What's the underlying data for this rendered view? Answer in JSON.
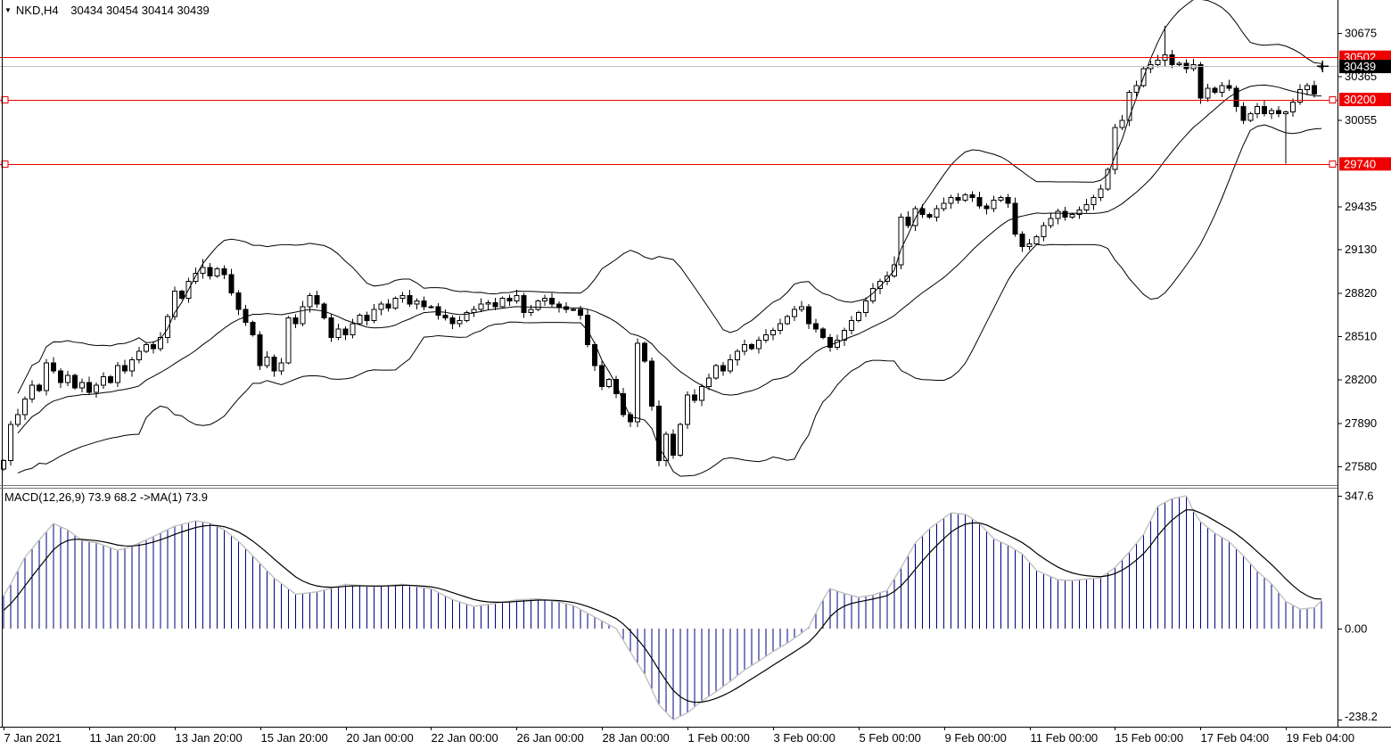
{
  "header": {
    "symbol": "NKD,H4",
    "ohlc_text": "30434 30454 30414 30439"
  },
  "colors": {
    "background": "#ffffff",
    "bull_body": "#ffffff",
    "bear_body": "#000000",
    "candle_outline": "#000000",
    "bollinger": "#000000",
    "macd_bar": "#000080",
    "macd_main": "#c0c0c0",
    "macd_signal": "#000000",
    "hline": "#ee0000",
    "hline_label_bg": "#ee0000",
    "current_line": "#c0c0c0",
    "current_label_bg": "#000000",
    "label_text": "#ffffff",
    "axis_text": "#000000",
    "border": "#000000",
    "separator": "#777777"
  },
  "chart_data": {
    "type": "candlestick",
    "symbol": "NKD",
    "timeframe": "H4",
    "last_candle": {
      "open": 30434,
      "high": 30454,
      "low": 30414,
      "close": 30439
    },
    "current_price": 30439,
    "price_axis": {
      "ticks": [
        30675,
        30365,
        30055,
        29435,
        29130,
        28820,
        28510,
        28200,
        27890,
        27580
      ]
    },
    "h_lines": [
      {
        "price": 30502,
        "label": "30502",
        "selected": false
      },
      {
        "price": 30200,
        "label": "30200",
        "selected": true
      },
      {
        "price": 29740,
        "label": "29740",
        "selected": true
      }
    ],
    "x_labels": [
      {
        "index": 0,
        "label": "7 Jan 2021"
      },
      {
        "index": 12,
        "label": "11 Jan 20:00"
      },
      {
        "index": 24,
        "label": "13 Jan 20:00"
      },
      {
        "index": 36,
        "label": "15 Jan 20:00"
      },
      {
        "index": 48,
        "label": "20 Jan 00:00"
      },
      {
        "index": 60,
        "label": "22 Jan 00:00"
      },
      {
        "index": 72,
        "label": "26 Jan 00:00"
      },
      {
        "index": 84,
        "label": "28 Jan 00:00"
      },
      {
        "index": 96,
        "label": "1 Feb 00:00"
      },
      {
        "index": 108,
        "label": "3 Feb 00:00"
      },
      {
        "index": 120,
        "label": "5 Feb 00:00"
      },
      {
        "index": 132,
        "label": "9 Feb 00:00"
      },
      {
        "index": 144,
        "label": "11 Feb 00:00"
      },
      {
        "index": 156,
        "label": "15 Feb 00:00"
      },
      {
        "index": 168,
        "label": "17 Feb 04:00"
      },
      {
        "index": 180,
        "label": "19 Feb 04:00"
      }
    ],
    "candles": {
      "first_open": 27560,
      "closes": [
        27620,
        27880,
        27950,
        28060,
        28160,
        28120,
        28320,
        28260,
        28180,
        28230,
        28140,
        28180,
        28110,
        28160,
        28220,
        28180,
        28300,
        28260,
        28340,
        28400,
        28450,
        28420,
        28500,
        28650,
        28830,
        28780,
        28900,
        28960,
        29000,
        28940,
        28990,
        28950,
        28820,
        28700,
        28610,
        28520,
        28300,
        28360,
        28260,
        28320,
        28640,
        28600,
        28720,
        28800,
        28740,
        28640,
        28500,
        28560,
        28520,
        28600,
        28660,
        28620,
        28700,
        28740,
        28710,
        28780,
        28800,
        28740,
        28760,
        28720,
        28720,
        28660,
        28640,
        28600,
        28620,
        28680,
        28700,
        28740,
        28750,
        28720,
        28780,
        28760,
        28800,
        28680,
        28700,
        28760,
        28780,
        28740,
        28720,
        28700,
        28700,
        28660,
        28450,
        28300,
        28150,
        28200,
        28100,
        27950,
        27900,
        28460,
        28330,
        28010,
        27620,
        27810,
        27660,
        27880,
        28090,
        28050,
        28150,
        28210,
        28300,
        28260,
        28340,
        28400,
        28450,
        28420,
        28480,
        28520,
        28550,
        28600,
        28650,
        28700,
        28720,
        28600,
        28560,
        28500,
        28430,
        28480,
        28550,
        28620,
        28680,
        28760,
        28850,
        28900,
        28940,
        29020,
        29360,
        29300,
        29420,
        29380,
        29360,
        29420,
        29460,
        29500,
        29480,
        29520,
        29500,
        29440,
        29420,
        29480,
        29500,
        29460,
        29240,
        29150,
        29170,
        29220,
        29300,
        29350,
        29400,
        29360,
        29380,
        29410,
        29450,
        29500,
        29560,
        29700,
        30000,
        30050,
        30250,
        30300,
        30420,
        30450,
        30480,
        30520,
        30450,
        30460,
        30420,
        30450,
        30210,
        30280,
        30250,
        30300,
        30280,
        30150,
        30050,
        30100,
        30150,
        30100,
        30120,
        30100,
        30110,
        30180,
        30270,
        30300,
        30240,
        30439
      ],
      "open_overrides": {
        "185": 30434
      },
      "hl_overrides": {
        "28": [
          29060,
          null
        ],
        "89": [
          null,
          27860
        ],
        "92": [
          null,
          27580
        ],
        "125": [
          29080,
          null
        ],
        "163": [
          30725,
          null
        ],
        "180": [
          null,
          29743
        ],
        "185": [
          30454,
          30414
        ]
      }
    },
    "indicators": {
      "bollinger": {
        "period": 20,
        "deviation": 2
      },
      "macd": {
        "label": "MACD(12,26,9) 73.9 68.2  ->MA(1) 73.9",
        "main_value": 73.9,
        "signal_value": 68.2,
        "signal_period": 9,
        "signal_seed": 35,
        "axis": {
          "max": 347.6,
          "zero": 0.0,
          "min": -238.2,
          "labels": [
            "347.6",
            "0.00",
            "-238.2"
          ]
        },
        "main_keypoints": [
          [
            0,
            86
          ],
          [
            1,
            117
          ],
          [
            3,
            187
          ],
          [
            5,
            232
          ],
          [
            7,
            275
          ],
          [
            9,
            258
          ],
          [
            11,
            231
          ],
          [
            13,
            225
          ],
          [
            16,
            205
          ],
          [
            18,
            215
          ],
          [
            20,
            232
          ],
          [
            24,
            268
          ],
          [
            27,
            282
          ],
          [
            29,
            276
          ],
          [
            31,
            258
          ],
          [
            33,
            228
          ],
          [
            35,
            190
          ],
          [
            38,
            132
          ],
          [
            41,
            90
          ],
          [
            44,
            96
          ],
          [
            48,
            116
          ],
          [
            52,
            110
          ],
          [
            56,
            116
          ],
          [
            60,
            104
          ],
          [
            63,
            76
          ],
          [
            66,
            58
          ],
          [
            69,
            66
          ],
          [
            72,
            75
          ],
          [
            75,
            78
          ],
          [
            78,
            70
          ],
          [
            80,
            60
          ],
          [
            82,
            40
          ],
          [
            84,
            20
          ],
          [
            86,
            0
          ],
          [
            88,
            -62
          ],
          [
            90,
            -120
          ],
          [
            92,
            -200
          ],
          [
            94,
            -238.2
          ],
          [
            96,
            -220
          ],
          [
            98,
            -190
          ],
          [
            100,
            -165
          ],
          [
            102,
            -138
          ],
          [
            104,
            -108
          ],
          [
            106,
            -85
          ],
          [
            108,
            -60
          ],
          [
            110,
            -38
          ],
          [
            112,
            -12
          ],
          [
            113,
            3
          ],
          [
            114,
            40
          ],
          [
            115,
            75
          ],
          [
            116,
            105
          ],
          [
            118,
            92
          ],
          [
            120,
            82
          ],
          [
            122,
            88
          ],
          [
            124,
            100
          ],
          [
            126,
            160
          ],
          [
            128,
            225
          ],
          [
            130,
            262
          ],
          [
            133,
            303
          ],
          [
            135,
            299
          ],
          [
            137,
            275
          ],
          [
            139,
            235
          ],
          [
            141,
            218
          ],
          [
            143,
            195
          ],
          [
            145,
            152
          ],
          [
            148,
            128
          ],
          [
            150,
            126
          ],
          [
            152,
            130
          ],
          [
            154,
            133
          ],
          [
            156,
            160
          ],
          [
            158,
            200
          ],
          [
            160,
            246
          ],
          [
            162,
            320
          ],
          [
            164,
            340
          ],
          [
            166,
            347.6
          ],
          [
            167,
            308
          ],
          [
            168,
            280
          ],
          [
            170,
            250
          ],
          [
            172,
            228
          ],
          [
            174,
            191
          ],
          [
            176,
            150
          ],
          [
            178,
            117
          ],
          [
            180,
            71
          ],
          [
            182,
            51
          ],
          [
            184,
            55
          ],
          [
            185,
            73.9
          ]
        ]
      }
    }
  }
}
